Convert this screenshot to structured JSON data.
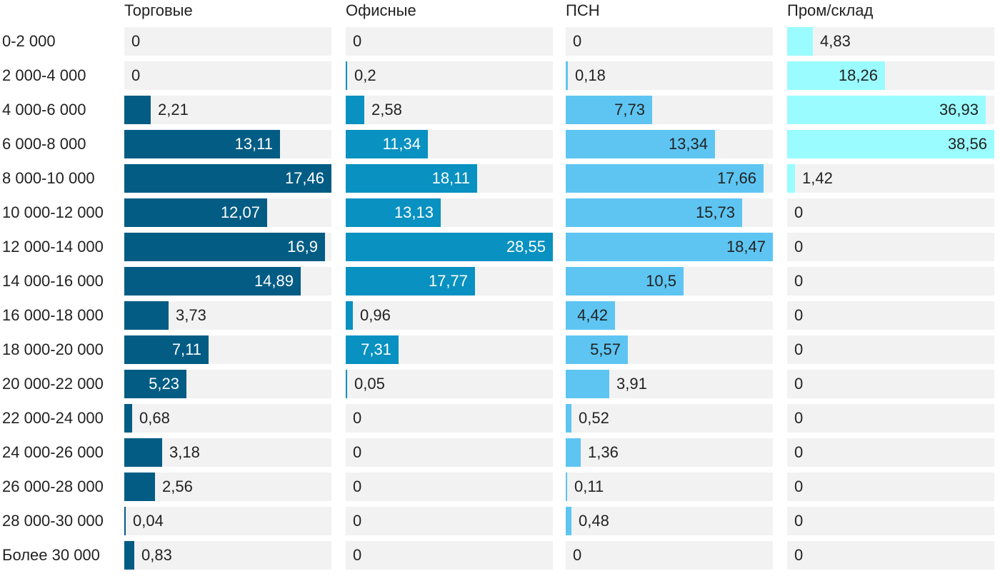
{
  "chart_data": {
    "type": "bar",
    "orientation": "horizontal",
    "layout": "small-multiples",
    "categories": [
      "0-2 000",
      "2 000-4 000",
      "4 000-6 000",
      "6 000-8 000",
      "8 000-10 000",
      "10 000-12 000",
      "12 000-14 000",
      "14 000-16 000",
      "16 000-18 000",
      "18 000-20 000",
      "20 000-22 000",
      "22 000-24 000",
      "24 000-26 000",
      "26 000-28 000",
      "28 000-30 000",
      "Более 30 000"
    ],
    "series": [
      {
        "name": "Торговые",
        "color": "#035c84",
        "xlim": [
          0,
          17.46
        ],
        "values": [
          0,
          0,
          2.21,
          13.11,
          17.46,
          12.07,
          16.9,
          14.89,
          3.73,
          7.11,
          5.23,
          0.68,
          3.18,
          2.56,
          0.04,
          0.83
        ],
        "labels": [
          "0",
          "0",
          "2,21",
          "13,11",
          "17,46",
          "12,07",
          "16,9",
          "14,89",
          "3,73",
          "7,11",
          "5,23",
          "0,68",
          "3,18",
          "2,56",
          "0,04",
          "0,83"
        ]
      },
      {
        "name": "Офисные",
        "color": "#0891c1",
        "xlim": [
          0,
          28.55
        ],
        "values": [
          0,
          0.2,
          2.58,
          11.34,
          18.11,
          13.13,
          28.55,
          17.77,
          0.96,
          7.31,
          0.05,
          0,
          0,
          0,
          0,
          0
        ],
        "labels": [
          "0",
          "0,2",
          "2,58",
          "11,34",
          "18,11",
          "13,13",
          "28,55",
          "17,77",
          "0,96",
          "7,31",
          "0,05",
          "0",
          "0",
          "0",
          "0",
          "0"
        ]
      },
      {
        "name": "ПСН",
        "color": "#5ec5f2",
        "xlim": [
          0,
          18.47
        ],
        "values": [
          0,
          0.18,
          7.73,
          13.34,
          17.66,
          15.73,
          18.47,
          10.5,
          4.42,
          5.57,
          3.91,
          0.52,
          1.36,
          0.11,
          0.48,
          0
        ],
        "labels": [
          "0",
          "0,18",
          "7,73",
          "13,34",
          "17,66",
          "15,73",
          "18,47",
          "10,5",
          "4,42",
          "5,57",
          "3,91",
          "0,52",
          "1,36",
          "0,11",
          "0,48",
          "0"
        ]
      },
      {
        "name": "Пром/склад",
        "color": "#9afcff",
        "xlim": [
          0,
          38.56
        ],
        "values": [
          4.83,
          18.26,
          36.93,
          38.56,
          1.42,
          0,
          0,
          0,
          0,
          0,
          0,
          0,
          0,
          0,
          0,
          0
        ],
        "labels": [
          "4,83",
          "18,26",
          "36,93",
          "38,56",
          "1,42",
          "0",
          "0",
          "0",
          "0",
          "0",
          "0",
          "0",
          "0",
          "0",
          "0",
          "0"
        ]
      }
    ],
    "title": "",
    "xlabel": "",
    "ylabel": "",
    "grid": false,
    "legend": "none"
  }
}
